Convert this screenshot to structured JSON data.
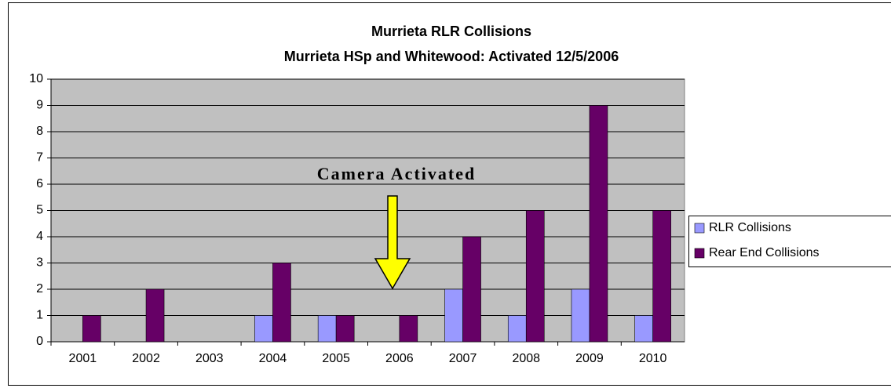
{
  "chart_data": {
    "type": "bar",
    "title": "Murrieta RLR Collisions",
    "subtitle": "Murrieta HSp and Whitewood: Activated 12/5/2006",
    "annotation": "Camera Activated",
    "categories": [
      "2001",
      "2002",
      "2003",
      "2004",
      "2005",
      "2006",
      "2007",
      "2008",
      "2009",
      "2010"
    ],
    "series": [
      {
        "name": "RLR Collisions",
        "color": "#9999ff",
        "values": [
          0,
          0,
          0,
          1,
          1,
          0,
          2,
          1,
          2,
          1
        ]
      },
      {
        "name": "Rear End Collisions",
        "color": "#660066",
        "values": [
          1,
          2,
          0,
          3,
          1,
          1,
          4,
          5,
          9,
          5
        ]
      }
    ],
    "ylim": [
      0,
      10
    ],
    "yticks": [
      0,
      1,
      2,
      3,
      4,
      5,
      6,
      7,
      8,
      9,
      10
    ],
    "grid": true,
    "legend": "right"
  }
}
